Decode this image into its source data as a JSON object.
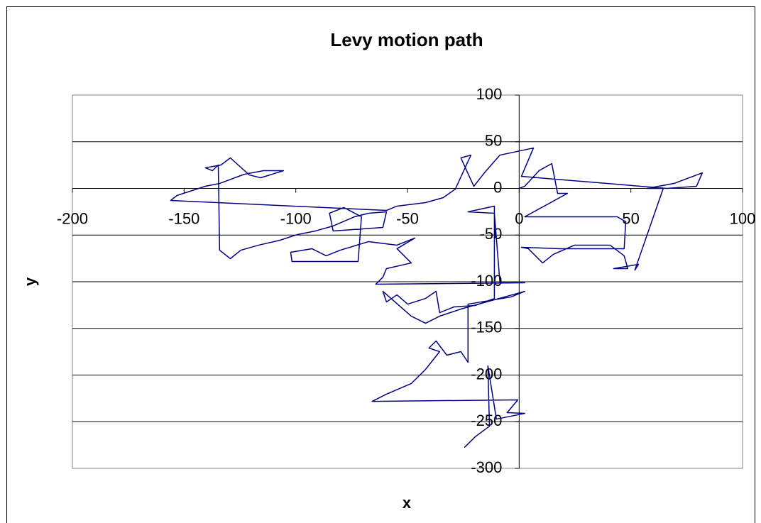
{
  "chart_data": {
    "type": "line",
    "title": "Levy motion path",
    "xlabel": "x",
    "ylabel": "y",
    "x": [
      0,
      2.5,
      8.9,
      14.6,
      17.2,
      21.6,
      2.5,
      43.9,
      47.7,
      47.0,
      18.4,
      1.0,
      4.1,
      10.5,
      15.3,
      24.8,
      40.7,
      47.0,
      48.6,
      42.3,
      53.4,
      51.8,
      64.5,
      57.2,
      69.3,
      82.0,
      79.4,
      66.1,
      1.0,
      6.4,
      -8.6,
      -15.3,
      -20.3,
      -26.1,
      -21.6,
      -28.6,
      -34.0,
      -41.9,
      -54.7,
      -59.4,
      -156.0,
      -153.2,
      -140.5,
      -134.1,
      -123.0,
      -114.4,
      -105.5,
      -115.7,
      -120.8,
      -129.3,
      -133.5,
      -140.5,
      -137.3,
      -134.7,
      -134.1,
      -129.3,
      -124.6,
      -116.6,
      -107.1,
      -99.2,
      -91.2,
      -83.3,
      -73.7,
      -67.4,
      -59.4,
      -61.0,
      -83.3,
      -84.9,
      -78.5,
      -70.6,
      -72.1,
      -101.7,
      -102.3,
      -92.8,
      -86.4,
      -80.1,
      -67.4,
      -54.7,
      -46.7,
      -54.7,
      -48.3,
      -59.4,
      -61.0,
      -64.2,
      2.5,
      -8.6,
      -11.1,
      -22.9,
      -11.1,
      -11.1,
      -19.7,
      -29.2,
      -35.6,
      -37.2,
      -41.9,
      -49.9,
      -54.7,
      -59.4,
      -61.0,
      -48.3,
      -41.9,
      -35.6,
      -26.1,
      2.5,
      -3.8,
      -22.9,
      -22.9,
      -26.1,
      -32.4,
      -37.2,
      -40.4,
      -35.6,
      -41.9,
      -48.3,
      -59.4,
      -65.8,
      -0.6,
      -5.4,
      2.5,
      -10.2,
      -14.0,
      -13.3,
      -19.7,
      -24.5
    ],
    "y": [
      0,
      2.3,
      19.0,
      26.6,
      -5.3,
      -5.3,
      -30.4,
      -30.4,
      -35.7,
      -64.6,
      -64.6,
      -63.1,
      -64.6,
      -79.9,
      -70.7,
      -60.8,
      -60.8,
      -72.2,
      -85.9,
      -85.9,
      -81.4,
      -87.5,
      0,
      0,
      5.3,
      16.7,
      2.3,
      0,
      12.9,
      43.3,
      35.7,
      17.5,
      2.3,
      32.7,
      35.7,
      -0.8,
      -9.9,
      -15.2,
      -19.0,
      -23.6,
      -12.9,
      -7.6,
      2.3,
      5.3,
      15.2,
      19.0,
      19.0,
      11.4,
      14.4,
      32.7,
      25.1,
      22.1,
      19.0,
      25.1,
      -66.2,
      -75.3,
      -66.2,
      -60.8,
      -55.5,
      -49.4,
      -45.6,
      -40.3,
      -30.4,
      -26.6,
      -25.1,
      -41.8,
      -45.6,
      -26.6,
      -20.5,
      -30.4,
      -78.3,
      -78.3,
      -68.4,
      -64.6,
      -72.2,
      -66.2,
      -57.0,
      -60.8,
      -53.2,
      -64.6,
      -79.9,
      -85.9,
      -95.1,
      -102.7,
      -101.1,
      -101.1,
      -26.6,
      -25.1,
      -19.0,
      -117.9,
      -125.5,
      -127.0,
      -133.1,
      -110.3,
      -117.9,
      -124.0,
      -114.1,
      -121.7,
      -110.3,
      -136.9,
      -144.5,
      -136.9,
      -129.3,
      -110.3,
      -116.4,
      -124.0,
      -186.3,
      -174.9,
      -178.7,
      -163.5,
      -171.1,
      -174.9,
      -193.9,
      -209.1,
      -220.5,
      -228.2,
      -226.6,
      -240.3,
      -241.1,
      -247.2,
      -190.1,
      -254.8,
      -266.2,
      -277.6
    ],
    "color": "#000080",
    "xlim": [
      -200,
      100
    ],
    "xticks": [
      -200,
      -150,
      -100,
      -50,
      0,
      50,
      100
    ],
    "ylim": [
      -300,
      100
    ],
    "yticks": [
      -300,
      -250,
      -200,
      -150,
      -100,
      -50,
      0,
      50,
      100
    ],
    "grid": true
  }
}
